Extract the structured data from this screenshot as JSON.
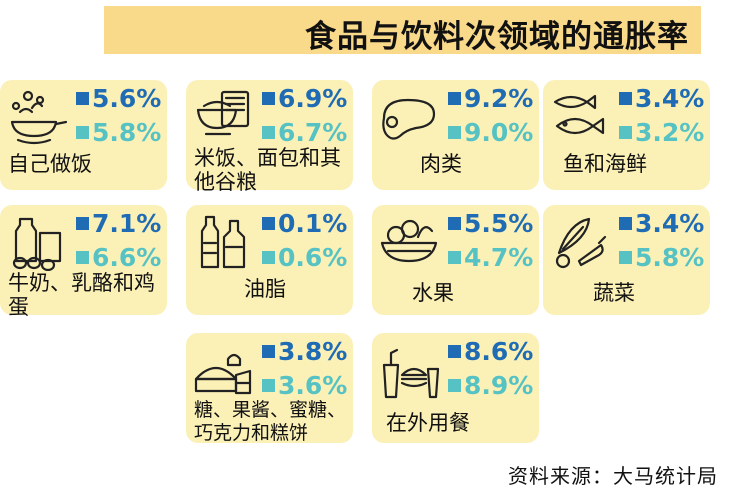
{
  "title": "食品与饮料次领域的通胀率",
  "source": "资料来源：大马统计局",
  "colors": {
    "primary": "#1f6bb4",
    "secondary": "#56c2c4",
    "card": "#fbf1b7",
    "title_bg": "#f9d98a"
  },
  "categories": [
    {
      "label": "自己做饭",
      "value_a": "5.6%",
      "value_b": "5.8%",
      "icon": "cooking-pan-icon"
    },
    {
      "label": "米饭、面包和其他谷粮",
      "value_a": "6.9%",
      "value_b": "6.7%",
      "icon": "rice-bowl-icon"
    },
    {
      "label": "肉类",
      "value_a": "9.2%",
      "value_b": "9.0%",
      "icon": "steak-icon"
    },
    {
      "label": "鱼和海鲜",
      "value_a": "3.4%",
      "value_b": "3.2%",
      "icon": "fish-shrimp-icon"
    },
    {
      "label": "牛奶、乳酪和鸡蛋",
      "value_a": "7.1%",
      "value_b": "6.6%",
      "icon": "milk-eggs-icon"
    },
    {
      "label": "油脂",
      "value_a": "0.1%",
      "value_b": "0.6%",
      "icon": "oil-bottle-icon"
    },
    {
      "label": "水果",
      "value_a": "5.5%",
      "value_b": "4.7%",
      "icon": "fruit-basket-icon"
    },
    {
      "label": "蔬菜",
      "value_a": "3.4%",
      "value_b": "5.8%",
      "icon": "vegetable-icon"
    },
    {
      "label": "糖、果酱、蜜糖、巧克力和糕饼",
      "value_a": "3.8%",
      "value_b": "3.6%",
      "icon": "cake-pie-icon"
    },
    {
      "label": "在外用餐",
      "value_a": "8.6%",
      "value_b": "8.9%",
      "icon": "fast-food-icon"
    }
  ]
}
